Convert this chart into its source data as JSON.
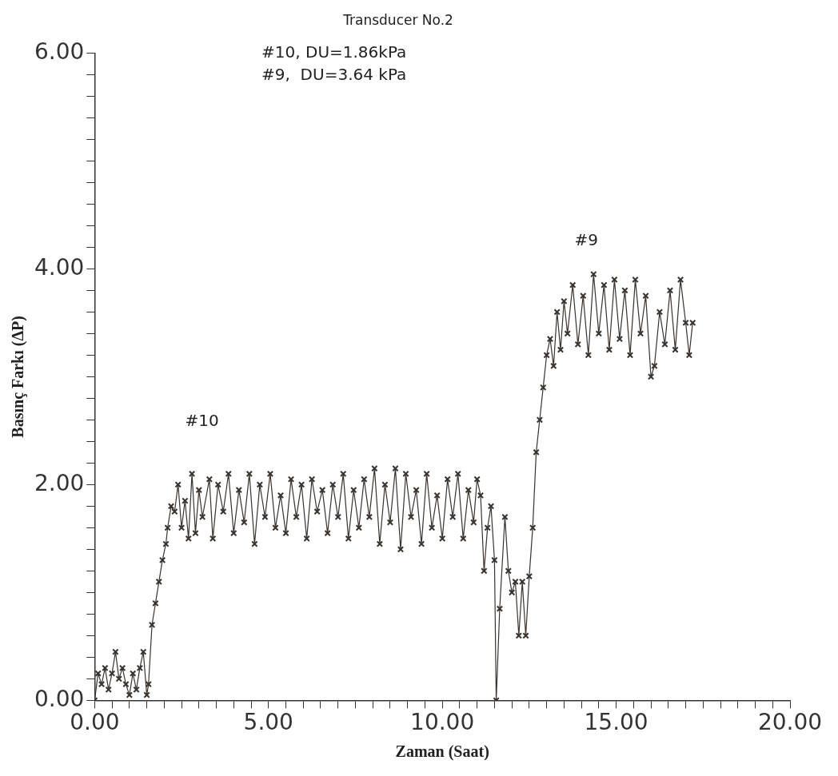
{
  "chart_data": {
    "type": "line",
    "title": "Transducer No.2",
    "xlabel": "Zaman (Saat)",
    "ylabel": "Basınç Farkı (ΔP)",
    "annotations": [
      "#10, DU=1.86kPa",
      "#9,  DU=3.64 kPa",
      "#10",
      "#9"
    ],
    "xlim": [
      0,
      20
    ],
    "ylim": [
      0,
      6
    ],
    "xticks": [
      {
        "value": 0,
        "label": "0.00"
      },
      {
        "value": 0.5,
        "label": null
      },
      {
        "value": 1,
        "label": null
      },
      {
        "value": 1.5,
        "label": null
      },
      {
        "value": 2,
        "label": null
      },
      {
        "value": 2.5,
        "label": null
      },
      {
        "value": 3,
        "label": null
      },
      {
        "value": 3.5,
        "label": null
      },
      {
        "value": 4,
        "label": null
      },
      {
        "value": 4.5,
        "label": null
      },
      {
        "value": 5,
        "label": "5.00"
      },
      {
        "value": 5.5,
        "label": null
      },
      {
        "value": 6,
        "label": null
      },
      {
        "value": 6.5,
        "label": null
      },
      {
        "value": 7,
        "label": null
      },
      {
        "value": 7.5,
        "label": null
      },
      {
        "value": 8,
        "label": null
      },
      {
        "value": 8.5,
        "label": null
      },
      {
        "value": 9,
        "label": null
      },
      {
        "value": 9.5,
        "label": null
      },
      {
        "value": 10,
        "label": "10.00"
      },
      {
        "value": 10.5,
        "label": null
      },
      {
        "value": 11,
        "label": null
      },
      {
        "value": 11.5,
        "label": null
      },
      {
        "value": 12,
        "label": null
      },
      {
        "value": 12.5,
        "label": null
      },
      {
        "value": 13,
        "label": null
      },
      {
        "value": 13.5,
        "label": null
      },
      {
        "value": 14,
        "label": null
      },
      {
        "value": 14.5,
        "label": null
      },
      {
        "value": 15,
        "label": "15.00"
      },
      {
        "value": 15.5,
        "label": null
      },
      {
        "value": 16,
        "label": null
      },
      {
        "value": 16.5,
        "label": null
      },
      {
        "value": 17,
        "label": null
      },
      {
        "value": 17.5,
        "label": null
      },
      {
        "value": 18,
        "label": null
      },
      {
        "value": 18.5,
        "label": null
      },
      {
        "value": 19,
        "label": null
      },
      {
        "value": 19.5,
        "label": null
      },
      {
        "value": 20,
        "label": "20.00"
      }
    ],
    "yticks": [
      {
        "value": 0,
        "label": "0.00"
      },
      {
        "value": 0.2,
        "label": null
      },
      {
        "value": 0.4,
        "label": null
      },
      {
        "value": 0.6,
        "label": null
      },
      {
        "value": 0.8,
        "label": null
      },
      {
        "value": 1,
        "label": null
      },
      {
        "value": 1.2,
        "label": null
      },
      {
        "value": 1.4,
        "label": null
      },
      {
        "value": 1.6,
        "label": null
      },
      {
        "value": 1.8,
        "label": null
      },
      {
        "value": 2,
        "label": "2.00"
      },
      {
        "value": 2.2,
        "label": null
      },
      {
        "value": 2.4,
        "label": null
      },
      {
        "value": 2.6,
        "label": null
      },
      {
        "value": 2.8,
        "label": null
      },
      {
        "value": 3,
        "label": null
      },
      {
        "value": 3.2,
        "label": null
      },
      {
        "value": 3.4,
        "label": null
      },
      {
        "value": 3.6,
        "label": null
      },
      {
        "value": 3.8,
        "label": null
      },
      {
        "value": 4,
        "label": "4.00"
      },
      {
        "value": 4.2,
        "label": null
      },
      {
        "value": 4.4,
        "label": null
      },
      {
        "value": 4.6,
        "label": null
      },
      {
        "value": 4.8,
        "label": null
      },
      {
        "value": 5,
        "label": null
      },
      {
        "value": 5.2,
        "label": null
      },
      {
        "value": 5.4,
        "label": null
      },
      {
        "value": 5.6,
        "label": null
      },
      {
        "value": 5.8,
        "label": null
      },
      {
        "value": 6,
        "label": "6.00"
      }
    ],
    "grid": false,
    "legend": false,
    "marker": "cross",
    "line_style": "solid",
    "series": [
      {
        "color": "#3a3430",
        "x": [
          0,
          0.1,
          0.2,
          0.3,
          0.4,
          0.5,
          0.6,
          0.7,
          0.8,
          0.9,
          1.0,
          1.1,
          1.2,
          1.3,
          1.4,
          1.5,
          1.55,
          1.65,
          1.75,
          1.85,
          1.95,
          2.05,
          2.1,
          2.2,
          2.3,
          2.4,
          2.5,
          2.6,
          2.7,
          2.8,
          2.9,
          3.0,
          3.1,
          3.3,
          3.4,
          3.55,
          3.7,
          3.85,
          4.0,
          4.15,
          4.3,
          4.45,
          4.6,
          4.75,
          4.9,
          5.05,
          5.2,
          5.35,
          5.5,
          5.65,
          5.8,
          5.95,
          6.1,
          6.25,
          6.4,
          6.55,
          6.7,
          6.85,
          7.0,
          7.15,
          7.3,
          7.45,
          7.6,
          7.75,
          7.9,
          8.05,
          8.2,
          8.35,
          8.5,
          8.65,
          8.8,
          8.95,
          9.1,
          9.25,
          9.4,
          9.55,
          9.7,
          9.85,
          10.0,
          10.15,
          10.3,
          10.45,
          10.6,
          10.75,
          10.9,
          11.0,
          11.1,
          11.2,
          11.3,
          11.4,
          11.5,
          11.55,
          11.65,
          11.8,
          11.9,
          12.0,
          12.1,
          12.2,
          12.3,
          12.4,
          12.5,
          12.6,
          12.7,
          12.8,
          12.9,
          13.0,
          13.1,
          13.2,
          13.3,
          13.4,
          13.5,
          13.6,
          13.75,
          13.9,
          14.05,
          14.2,
          14.35,
          14.5,
          14.65,
          14.8,
          14.95,
          15.1,
          15.25,
          15.4,
          15.55,
          15.7,
          15.85,
          16.0,
          16.1,
          16.25,
          16.4,
          16.55,
          16.7,
          16.85,
          17.0,
          17.1,
          17.2
        ],
        "values": [
          0,
          0.25,
          0.15,
          0.3,
          0.1,
          0.25,
          0.45,
          0.2,
          0.3,
          0.15,
          0.05,
          0.25,
          0.1,
          0.3,
          0.45,
          0.05,
          0.15,
          0.7,
          0.9,
          1.1,
          1.3,
          1.45,
          1.6,
          1.8,
          1.75,
          2.0,
          1.6,
          1.85,
          1.5,
          2.1,
          1.55,
          1.95,
          1.7,
          2.05,
          1.5,
          2.0,
          1.75,
          2.1,
          1.55,
          1.95,
          1.65,
          2.1,
          1.45,
          2.0,
          1.7,
          2.1,
          1.6,
          1.9,
          1.55,
          2.05,
          1.7,
          2.0,
          1.5,
          2.05,
          1.75,
          1.95,
          1.55,
          2.0,
          1.7,
          2.1,
          1.5,
          1.95,
          1.6,
          2.05,
          1.7,
          2.15,
          1.45,
          2.0,
          1.65,
          2.15,
          1.4,
          2.1,
          1.7,
          1.95,
          1.45,
          2.1,
          1.6,
          1.9,
          1.5,
          2.05,
          1.7,
          2.1,
          1.5,
          1.95,
          1.65,
          2.05,
          1.9,
          1.2,
          1.6,
          1.8,
          1.3,
          0,
          0.85,
          1.7,
          1.2,
          1.0,
          1.1,
          0.6,
          1.1,
          0.6,
          1.15,
          1.6,
          2.3,
          2.6,
          2.9,
          3.2,
          3.35,
          3.1,
          3.6,
          3.25,
          3.7,
          3.4,
          3.85,
          3.3,
          3.75,
          3.2,
          3.95,
          3.4,
          3.85,
          3.25,
          3.9,
          3.35,
          3.8,
          3.2,
          3.9,
          3.4,
          3.75,
          3.0,
          3.1,
          3.6,
          3.3,
          3.8,
          3.25,
          3.9,
          3.5,
          3.2,
          3.5
        ]
      }
    ]
  }
}
